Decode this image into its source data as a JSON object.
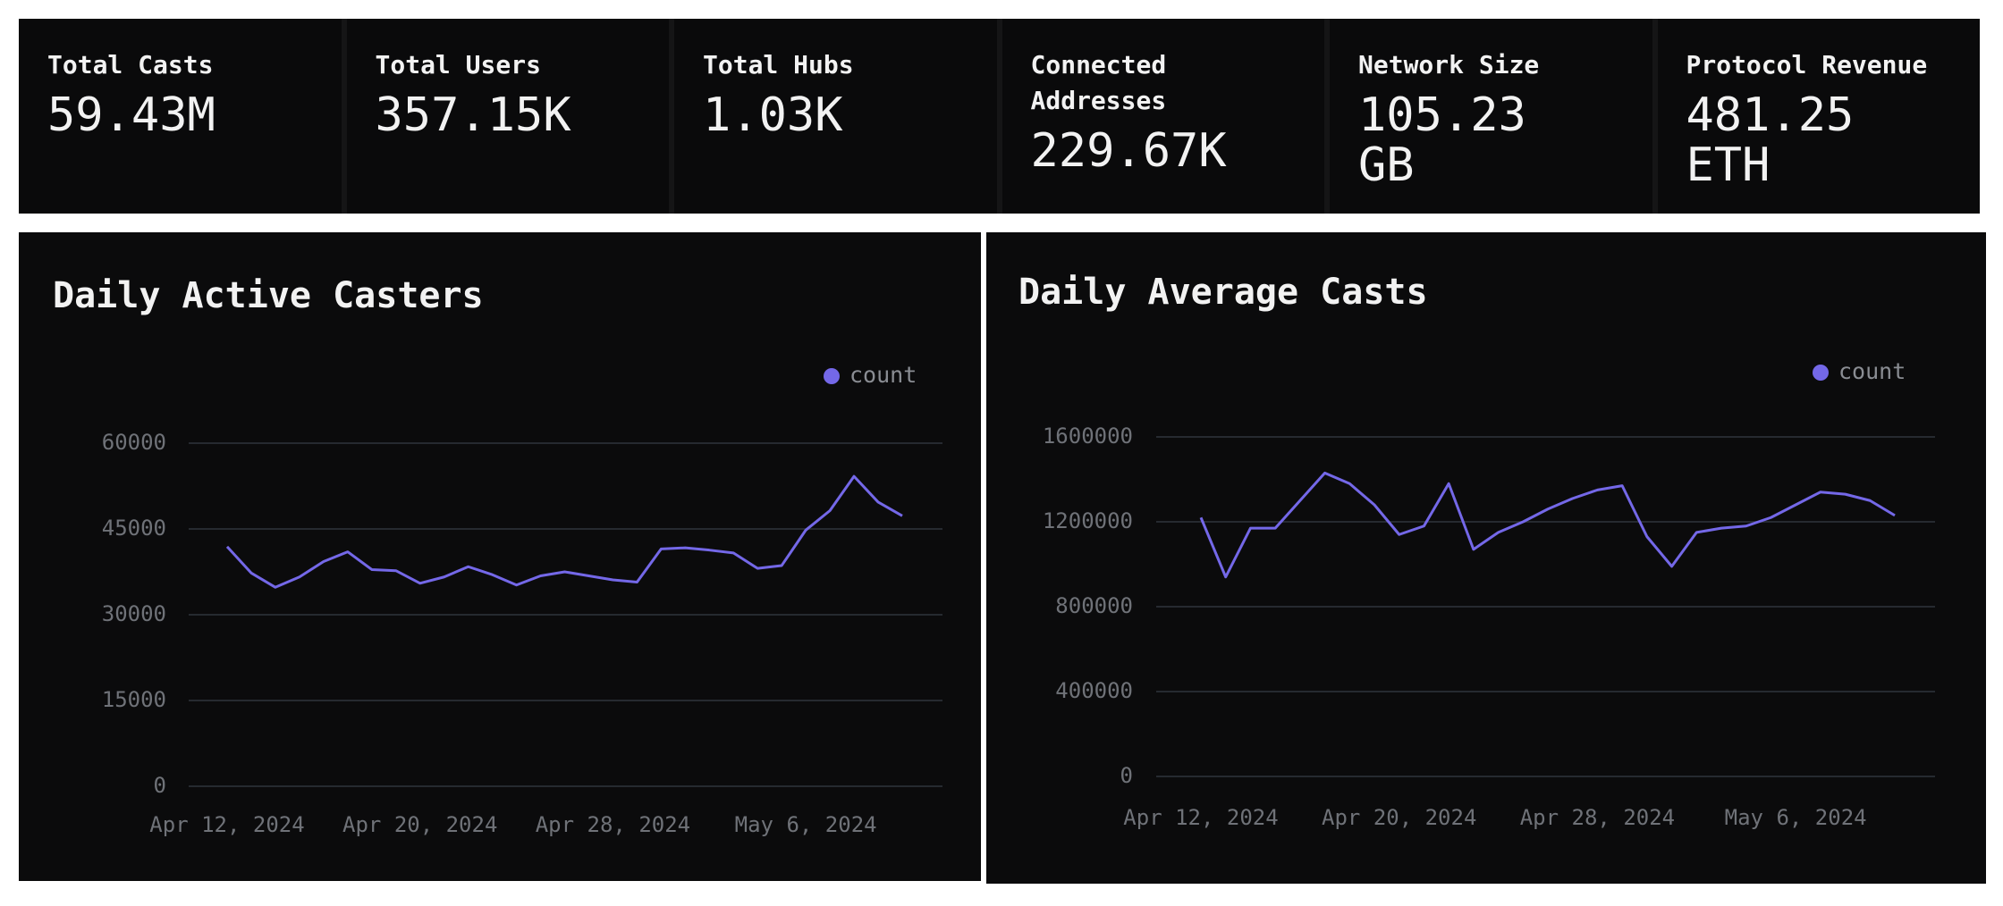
{
  "stats": [
    {
      "label": "Total Casts",
      "value": "59.43M"
    },
    {
      "label": "Total Users",
      "value": "357.15K"
    },
    {
      "label": "Total Hubs",
      "value": "1.03K"
    },
    {
      "label": "Connected Addresses",
      "value": "229.67K"
    },
    {
      "label": "Network Size",
      "value": "105.23 GB"
    },
    {
      "label": "Protocol Revenue",
      "value": "481.25 ETH"
    }
  ],
  "chart_data": [
    {
      "type": "line",
      "title": "Daily Active Casters",
      "x": [
        "2024-04-12",
        "2024-04-13",
        "2024-04-14",
        "2024-04-15",
        "2024-04-16",
        "2024-04-17",
        "2024-04-18",
        "2024-04-19",
        "2024-04-20",
        "2024-04-21",
        "2024-04-22",
        "2024-04-23",
        "2024-04-24",
        "2024-04-25",
        "2024-04-26",
        "2024-04-27",
        "2024-04-28",
        "2024-04-29",
        "2024-04-30",
        "2024-05-01",
        "2024-05-02",
        "2024-05-03",
        "2024-05-04",
        "2024-05-05",
        "2024-05-06",
        "2024-05-07",
        "2024-05-08",
        "2024-05-09",
        "2024-05-10"
      ],
      "series": [
        {
          "name": "count",
          "color": "#7468e8",
          "values": [
            41900,
            37300,
            34800,
            36600,
            39300,
            41000,
            37900,
            37700,
            35500,
            36600,
            38400,
            37000,
            35200,
            36800,
            37500,
            36800,
            36100,
            35700,
            41500,
            41700,
            41300,
            40800,
            38100,
            38600,
            44800,
            48200,
            54200,
            49700,
            47300
          ]
        }
      ],
      "ylim": [
        0,
        60000
      ],
      "yticks": [
        0,
        15000,
        30000,
        45000,
        60000
      ],
      "xticks": [
        {
          "value": "2024-04-12",
          "label": "Apr 12, 2024"
        },
        {
          "value": "2024-04-20",
          "label": "Apr 20, 2024"
        },
        {
          "value": "2024-04-28",
          "label": "Apr 28, 2024"
        },
        {
          "value": "2024-05-06",
          "label": "May 6, 2024"
        }
      ],
      "grid": true,
      "legend": "top-right"
    },
    {
      "type": "line",
      "title": "Daily Average Casts",
      "x": [
        "2024-04-12",
        "2024-04-13",
        "2024-04-14",
        "2024-04-15",
        "2024-04-16",
        "2024-04-17",
        "2024-04-18",
        "2024-04-19",
        "2024-04-20",
        "2024-04-21",
        "2024-04-22",
        "2024-04-23",
        "2024-04-24",
        "2024-04-25",
        "2024-04-26",
        "2024-04-27",
        "2024-04-28",
        "2024-04-29",
        "2024-04-30",
        "2024-05-01",
        "2024-05-02",
        "2024-05-03",
        "2024-05-04",
        "2024-05-05",
        "2024-05-06",
        "2024-05-07",
        "2024-05-08",
        "2024-05-09",
        "2024-05-10"
      ],
      "series": [
        {
          "name": "count",
          "color": "#7468e8",
          "values": [
            1220000,
            940000,
            1170000,
            1170000,
            1300000,
            1430000,
            1380000,
            1280000,
            1140000,
            1180000,
            1380000,
            1070000,
            1150000,
            1200000,
            1260000,
            1310000,
            1350000,
            1370000,
            1130000,
            990000,
            1150000,
            1170000,
            1180000,
            1220000,
            1280000,
            1340000,
            1330000,
            1300000,
            1230000
          ]
        }
      ],
      "ylim": [
        0,
        1600000
      ],
      "yticks": [
        0,
        400000,
        800000,
        1200000,
        1600000
      ],
      "xticks": [
        {
          "value": "2024-04-12",
          "label": "Apr 12, 2024"
        },
        {
          "value": "2024-04-20",
          "label": "Apr 20, 2024"
        },
        {
          "value": "2024-04-28",
          "label": "Apr 28, 2024"
        },
        {
          "value": "2024-05-06",
          "label": "May 6, 2024"
        }
      ],
      "grid": true,
      "legend": "top-right"
    }
  ]
}
